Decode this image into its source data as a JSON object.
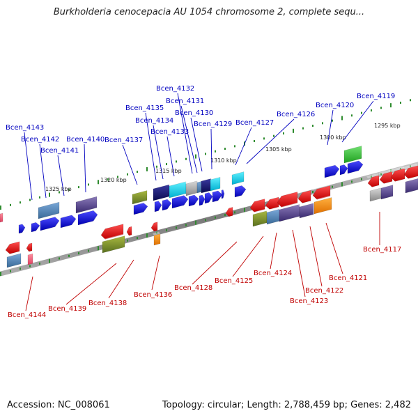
{
  "title": "Burkholderia cenocepacia AU 1054 chromosome 2, complete sequ...",
  "footer": {
    "accession": "Accession: NC_008061",
    "summary": "Topology: circular; Length: 2,788,459 bp; Genes: 2,482"
  },
  "colors": {
    "forward_label": "#0000c0",
    "reverse_label": "#c00000",
    "backbone": "#8a8a8a",
    "tick": "#2e8b2e"
  },
  "scale_labels": [
    "1325 kbp",
    "1320 kbp",
    "1315 kbp",
    "1310 kbp",
    "1305 kbp",
    "1300 kbp",
    "1295 kbp"
  ],
  "forward_genes": [
    "Bcen_4143",
    "Bcen_4142",
    "Bcen_4141",
    "Bcen_4140",
    "Bcen_4137",
    "Bcen_4135",
    "Bcen_4134",
    "Bcen_4133",
    "Bcen_4132",
    "Bcen_4131",
    "Bcen_4130",
    "Bcen_4129",
    "Bcen_4127",
    "Bcen_4126",
    "Bcen_4120",
    "Bcen_4119"
  ],
  "reverse_genes": [
    "Bcen_4144",
    "Bcen_4139",
    "Bcen_4138",
    "Bcen_4136",
    "Bcen_4128",
    "Bcen_4125",
    "Bcen_4124",
    "Bcen_4123",
    "Bcen_4122",
    "Bcen_4121",
    "Bcen_4117"
  ]
}
